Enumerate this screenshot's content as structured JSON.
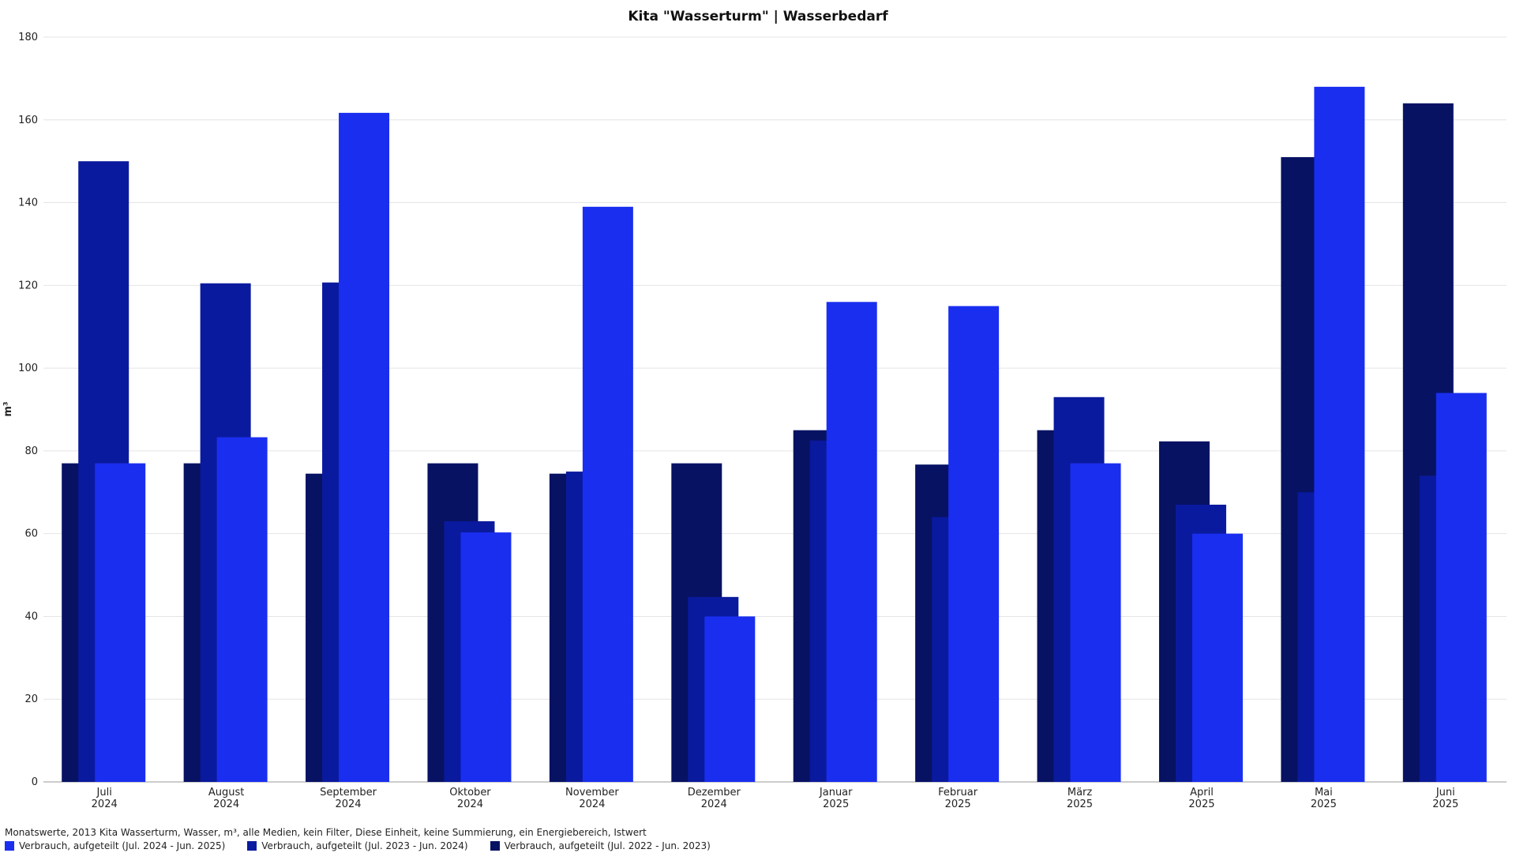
{
  "chart_data": {
    "type": "bar",
    "title": "Kita \"Wasserturm\" | Wasserbedarf",
    "ylabel": "m³",
    "ylim": [
      0,
      180
    ],
    "yticks": [
      0,
      20,
      40,
      60,
      80,
      100,
      120,
      140,
      160,
      180
    ],
    "grid": true,
    "legend_position": "bottom-left",
    "categories": [
      {
        "month": "Juli",
        "year": "2024"
      },
      {
        "month": "August",
        "year": "2024"
      },
      {
        "month": "September",
        "year": "2024"
      },
      {
        "month": "Oktober",
        "year": "2024"
      },
      {
        "month": "November",
        "year": "2024"
      },
      {
        "month": "Dezember",
        "year": "2024"
      },
      {
        "month": "Januar",
        "year": "2025"
      },
      {
        "month": "Februar",
        "year": "2025"
      },
      {
        "month": "März",
        "year": "2025"
      },
      {
        "month": "April",
        "year": "2025"
      },
      {
        "month": "Mai",
        "year": "2025"
      },
      {
        "month": "Juni",
        "year": "2025"
      }
    ],
    "series": [
      {
        "name": "Verbrauch, aufgeteilt (Jul. 2022 - Jun. 2023)",
        "color": "#071263",
        "values": [
          77,
          77,
          74.5,
          77,
          74.5,
          77,
          85,
          76.7,
          85,
          82.3,
          151,
          164
        ]
      },
      {
        "name": "Verbrauch, aufgeteilt (Jul. 2023 - Jun. 2024)",
        "color": "#0a1a9e",
        "values": [
          150,
          120.5,
          120.7,
          63,
          75,
          44.7,
          82.5,
          64,
          93,
          67,
          70,
          74
        ]
      },
      {
        "name": "Verbrauch, aufgeteilt (Jul. 2024 - Jun. 2025)",
        "color": "#1a2ef0",
        "values": [
          77,
          83.3,
          161.7,
          60.3,
          139,
          40,
          116,
          115,
          77,
          60,
          168,
          94
        ]
      }
    ]
  },
  "footer": {
    "note": "Monatswerte, 2013 Kita Wasserturm, Wasser, m³, alle Medien, kein Filter, Diese Einheit, keine Summierung, ein Energiebereich, Istwert"
  },
  "legend": [
    {
      "label": "Verbrauch, aufgeteilt (Jul. 2024 - Jun. 2025)",
      "color": "#1a2ef0"
    },
    {
      "label": "Verbrauch, aufgeteilt (Jul. 2023 - Jun. 2024)",
      "color": "#0a1a9e"
    },
    {
      "label": "Verbrauch, aufgeteilt (Jul. 2022 - Jun. 2023)",
      "color": "#071263"
    }
  ]
}
